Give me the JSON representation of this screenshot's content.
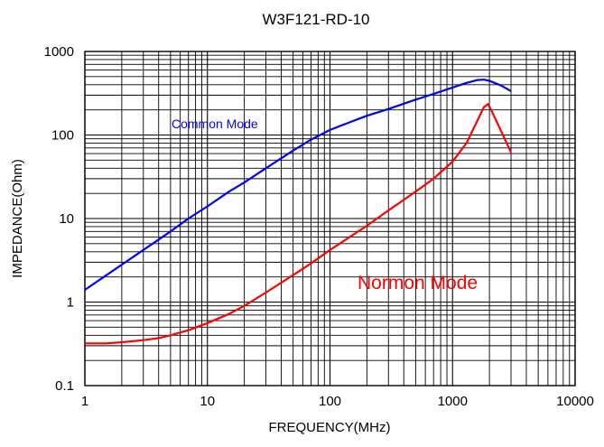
{
  "chart_data": {
    "type": "line",
    "title": "W3F121-RD-10",
    "xlabel": "FREQUENCY(MHz)",
    "ylabel": "IMPEDANCE(Ohm)",
    "xscale": "log",
    "yscale": "log",
    "xlim": [
      1,
      10000
    ],
    "ylim": [
      0.1,
      1000
    ],
    "grid": true,
    "x_ticks": [
      "1",
      "10",
      "100",
      "1000",
      "10000"
    ],
    "y_ticks": [
      "0.1",
      "1",
      "10",
      "100",
      "1000"
    ],
    "series": [
      {
        "name": "Common Mode",
        "color": "#0000ff",
        "x": [
          1,
          1.5,
          2,
          3,
          5,
          7,
          10,
          15,
          20,
          30,
          50,
          70,
          100,
          150,
          200,
          300,
          500,
          700,
          1000,
          1300,
          1600,
          1800,
          2000,
          2500,
          3000
        ],
        "y": [
          1.4,
          2.1,
          2.8,
          4.2,
          7,
          10,
          14,
          21,
          27,
          40,
          65,
          88,
          115,
          145,
          170,
          205,
          265,
          310,
          370,
          420,
          455,
          460,
          445,
          390,
          335
        ]
      },
      {
        "name": "Normon Mode",
        "color": "#ff0000",
        "x": [
          1,
          1.5,
          2,
          3,
          4,
          5,
          7,
          10,
          15,
          20,
          30,
          50,
          70,
          100,
          150,
          200,
          300,
          500,
          700,
          1000,
          1300,
          1600,
          1800,
          1950,
          2100,
          2500,
          3000
        ],
        "y": [
          0.32,
          0.32,
          0.33,
          0.35,
          0.37,
          0.4,
          0.46,
          0.56,
          0.72,
          0.9,
          1.3,
          2.1,
          2.9,
          4.2,
          6.2,
          8.2,
          12.5,
          21,
          30,
          48,
          80,
          150,
          215,
          235,
          190,
          110,
          62
        ]
      }
    ]
  }
}
